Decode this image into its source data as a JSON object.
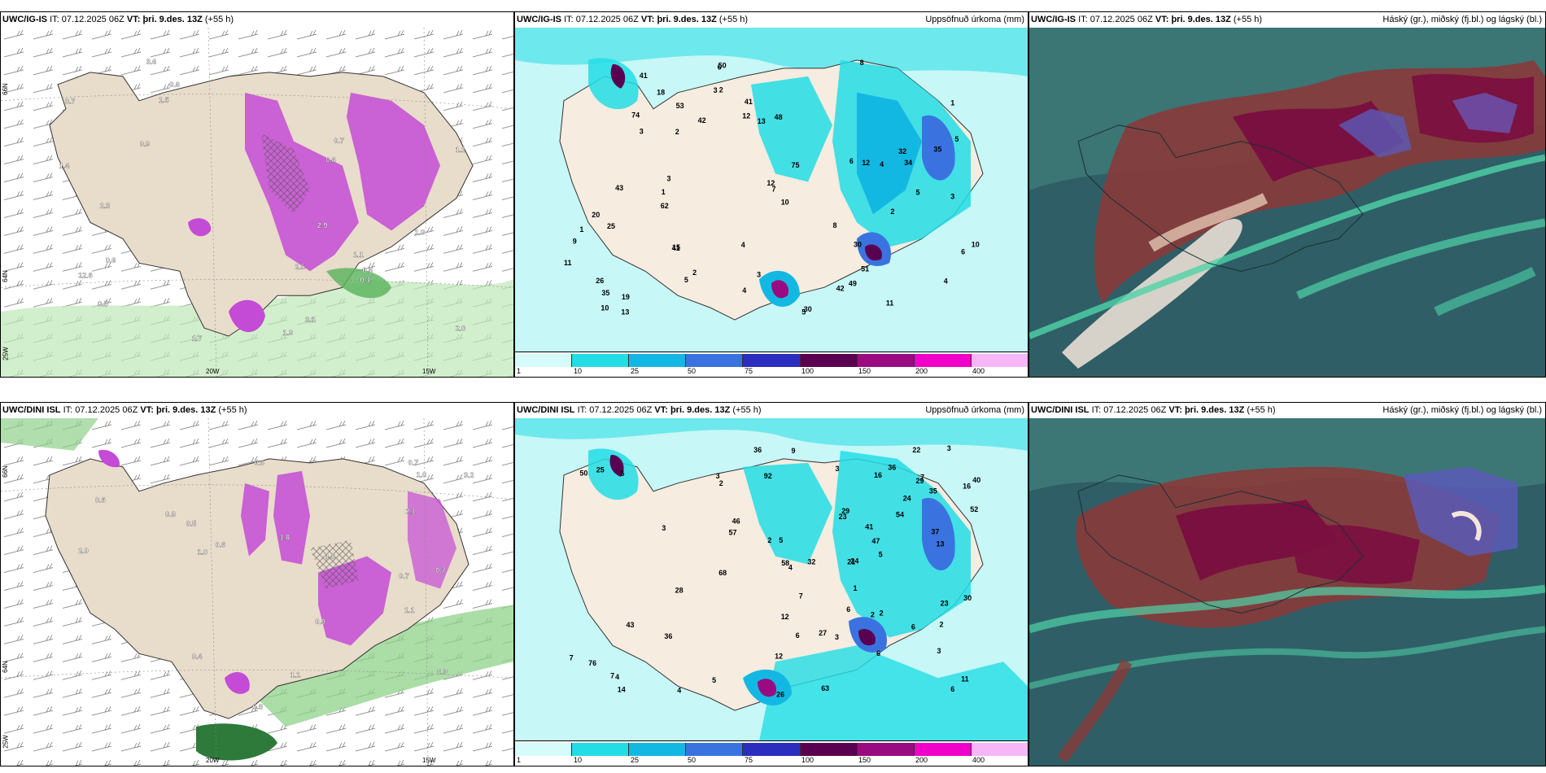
{
  "panels": [
    {
      "id": "ig-pressure",
      "model": "UWC/IG-IS",
      "it_label": "IT:",
      "it_value": "07.12.2025 06Z",
      "vt_label": "VT:",
      "vt_value": "þri. 9.des. 13Z",
      "lead": "(+55 h)",
      "title": "",
      "lon_labels": [
        "20W",
        "15W"
      ],
      "lat_labels": [
        "66N",
        "64N",
        "25W"
      ],
      "values": [
        "0.9",
        "1.1",
        "1.4",
        "1.9",
        "2.9",
        "2.3",
        "2.0",
        "1.5",
        "3.1",
        "12.6",
        "0.7",
        "1.0",
        "2.5",
        "1.1",
        "0.6",
        "0.7",
        "0.6",
        "0.6",
        "0.5",
        "3.6",
        "0.8",
        "0.4",
        "1.7"
      ]
    },
    {
      "id": "ig-precip",
      "model": "UWC/IG-IS",
      "it_label": "IT:",
      "it_value": "07.12.2025 06Z",
      "vt_label": "VT:",
      "vt_value": "þri. 9.des. 13Z",
      "lead": "(+55 h)",
      "title": "Uppsöfnuð úrkoma (mm)",
      "colorbar_labels": [
        "1",
        "10",
        "25",
        "50",
        "75",
        "100",
        "150",
        "200",
        "400"
      ],
      "colorbar_colors": [
        "#d6fbfb",
        "#22dde5",
        "#13b8e2",
        "#3a73e0",
        "#2a2dbd",
        "#5a0050",
        "#9a0a80",
        "#f000c8",
        "#f7b6f7"
      ],
      "values": [
        "3",
        "4",
        "3",
        "3",
        "1",
        "1",
        "19",
        "43",
        "8",
        "5",
        "2",
        "1",
        "4",
        "6",
        "3",
        "5",
        "4",
        "8",
        "9",
        "13",
        "11",
        "2",
        "2",
        "4",
        "3",
        "41",
        "35",
        "50",
        "62",
        "30",
        "34",
        "20",
        "10",
        "7",
        "5",
        "53",
        "48",
        "18",
        "26",
        "13",
        "25",
        "42",
        "12",
        "12",
        "51",
        "49",
        "41",
        "41",
        "10",
        "30",
        "75",
        "74",
        "32",
        "15",
        "11",
        "12",
        "10",
        "6",
        "5",
        "6",
        "42",
        "35",
        "2"
      ]
    },
    {
      "id": "ig-cloud",
      "model": "UWC/IG-IS",
      "it_label": "IT:",
      "it_value": "07.12.2025 06Z",
      "vt_label": "VT:",
      "vt_value": "þri. 9.des. 13Z",
      "lead": "(+55 h)",
      "title": "Háský (gr.), miðský (fj.bl.) og lágský (bl.)"
    },
    {
      "id": "dini-pressure",
      "model": "UWC/DINI ISL",
      "it_label": "IT:",
      "it_value": "07.12.2025 06Z",
      "vt_label": "VT:",
      "vt_value": "þri. 9.des. 13Z",
      "lead": "(+55 h)",
      "title": "",
      "lon_labels": [
        "20W",
        "15W"
      ],
      "lat_labels": [
        "66N",
        "64N",
        "25W"
      ],
      "values": [
        "0.9",
        "0.8",
        "1.0",
        "1.1",
        "2.1",
        "1.0",
        "0.5",
        "0.7",
        "0.6",
        "0.7",
        "3.2",
        "2.0",
        "0.9",
        "0.8",
        "1.8",
        "1.0",
        "0.6",
        "0.7",
        "0.4",
        "1.1",
        "0.6"
      ]
    },
    {
      "id": "dini-precip",
      "model": "UWC/DINI ISL",
      "it_label": "IT:",
      "it_value": "07.12.2025 06Z",
      "vt_label": "VT:",
      "vt_value": "þri. 9.des. 13Z",
      "lead": "(+55 h)",
      "title": "Uppsöfnuð úrkoma (mm)",
      "colorbar_labels": [
        "1",
        "10",
        "25",
        "50",
        "75",
        "100",
        "150",
        "200",
        "400"
      ],
      "colorbar_colors": [
        "#d6fbfb",
        "#22dde5",
        "#13b8e2",
        "#3a73e0",
        "#2a2dbd",
        "#5a0050",
        "#9a0a80",
        "#f000c8",
        "#f7b6f7"
      ],
      "values": [
        "6",
        "5",
        "3",
        "5",
        "4",
        "4",
        "3",
        "3",
        "3",
        "16",
        "14",
        "9",
        "2",
        "2",
        "3",
        "1",
        "3",
        "2",
        "2",
        "5",
        "7",
        "7",
        "7",
        "7",
        "6",
        "11",
        "25",
        "21",
        "12",
        "24",
        "6",
        "63",
        "24",
        "41",
        "46",
        "36",
        "47",
        "30",
        "29",
        "68",
        "37",
        "26",
        "16",
        "27",
        "40",
        "57",
        "43",
        "32",
        "28",
        "13",
        "36",
        "58",
        "12",
        "50",
        "36",
        "22",
        "23",
        "52",
        "35",
        "29",
        "92",
        "54",
        "76",
        "5",
        "2",
        "4",
        "6",
        "23",
        "6"
      ]
    },
    {
      "id": "dini-cloud",
      "model": "UWC/DINI ISL",
      "it_label": "IT:",
      "it_value": "07.12.2025 06Z",
      "vt_label": "VT:",
      "vt_value": "þri. 9.des. 13Z",
      "lead": "(+55 h)",
      "title": "Háský (gr.), miðský (fj.bl.) og lágský (bl.)"
    }
  ],
  "colors": {
    "land": "#e8dccb",
    "sea_precip_light": "#c7f7f7",
    "precip_mid": "#22dde5",
    "precip_dark": "#13b8e2",
    "magenta": "#c44bd6",
    "green": "#58b35a",
    "cloud_dark": "#2f5e66",
    "cloud_red": "#b33a2e",
    "cloud_maroon": "#7a1040"
  }
}
